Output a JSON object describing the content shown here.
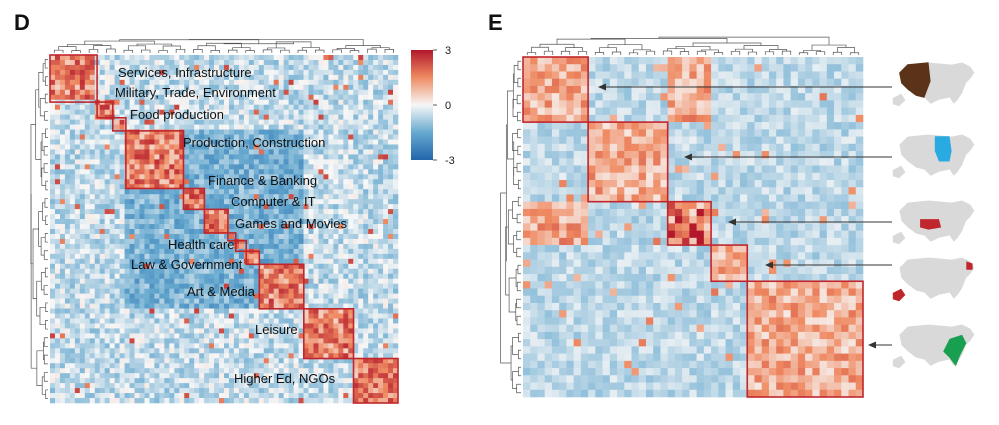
{
  "figure": {
    "panel_d_letter": "D",
    "panel_e_letter": "E"
  },
  "chart_data": [
    {
      "type": "heatmap",
      "panel": "D",
      "title": "",
      "xlabel": "",
      "ylabel": "",
      "dendrograms": true,
      "color_scale": {
        "min": -3,
        "max": 3,
        "ticks": [
          3,
          0,
          -3
        ],
        "low_color": "#2166ac",
        "mid_color": "#f7f7f7",
        "high_color": "#b2182b"
      },
      "block_color": "#c0272d",
      "clusters": [
        {
          "label": "Services, Infrastructure",
          "size": 18
        },
        {
          "label": "Military, Trade, Environment",
          "size": 6
        },
        {
          "label": "Food production",
          "size": 5
        },
        {
          "label": "Production, Construction",
          "size": 22
        },
        {
          "label": "Finance & Banking",
          "size": 8
        },
        {
          "label": "Computer & IT",
          "size": 9
        },
        {
          "label": "Games and Movies",
          "size": 3
        },
        {
          "label": "Health care",
          "size": 4
        },
        {
          "label": "Law & Government",
          "size": 5
        },
        {
          "label": "Art & Media",
          "size": 17
        },
        {
          "label": "Leisure",
          "size": 19
        },
        {
          "label": "Higher Ed, NGOs",
          "size": 17
        }
      ]
    },
    {
      "type": "heatmap",
      "panel": "E",
      "title": "",
      "xlabel": "",
      "ylabel": "",
      "dendrograms": true,
      "block_color": "#c0272d",
      "clusters": [
        {
          "label": "",
          "size": 9,
          "map_region": "west",
          "map_color": "#5b3318"
        },
        {
          "label": "",
          "size": 11,
          "map_region": "midwest",
          "map_color": "#29aae1"
        },
        {
          "label": "",
          "size": 6,
          "map_region": "south-central",
          "map_color": "#c0272d"
        },
        {
          "label": "",
          "size": 5,
          "map_region": "alaska-northeast",
          "map_color": "#c0272d"
        },
        {
          "label": "",
          "size": 16,
          "map_region": "southeast",
          "map_color": "#18a050"
        }
      ],
      "map_base_color": "#d9d9d9"
    }
  ]
}
